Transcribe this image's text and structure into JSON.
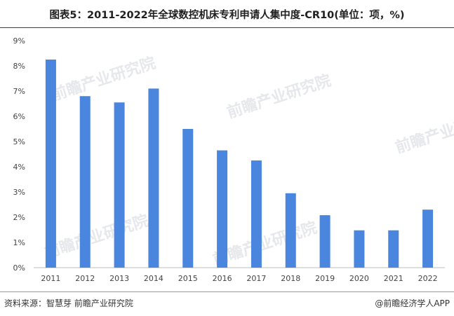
{
  "chart_data": {
    "type": "bar",
    "title": "图表5：2011-2022年全球数控机床专利申请人集中度-CR10(单位：项，%)",
    "categories": [
      "2011",
      "2012",
      "2013",
      "2014",
      "2015",
      "2016",
      "2017",
      "2018",
      "2019",
      "2020",
      "2021",
      "2022"
    ],
    "values": [
      8.25,
      6.8,
      6.55,
      7.1,
      5.5,
      4.65,
      4.25,
      2.95,
      2.08,
      1.48,
      1.48,
      2.3
    ],
    "yticks": [
      "0%",
      "1%",
      "2%",
      "3%",
      "4%",
      "5%",
      "6%",
      "7%",
      "8%",
      "9%"
    ],
    "ylim": [
      0,
      9
    ],
    "xlabel": "",
    "ylabel": "",
    "grid": false,
    "bar_color": "#4a86dd"
  },
  "footer": {
    "source": "资料来源：智慧芽 前瞻产业研究院",
    "credit": "@前瞻经济学人APP"
  },
  "watermark": "前瞻产业研究院"
}
